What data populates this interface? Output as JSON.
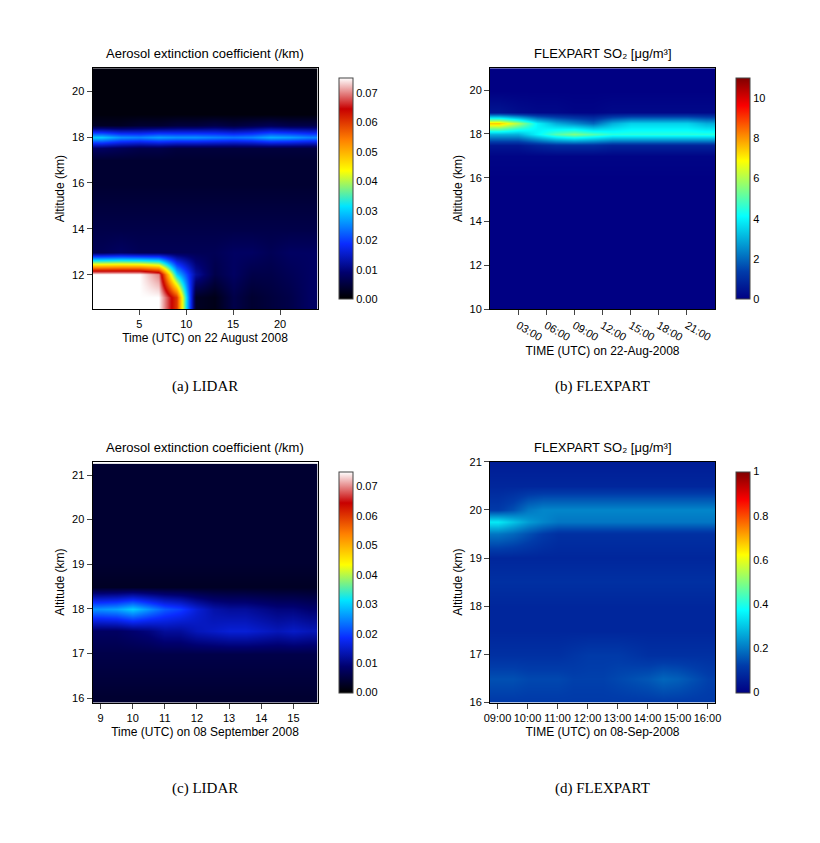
{
  "chart_data": [
    {
      "type": "heatmap",
      "title": "Aerosol extinction coefficient (/km)",
      "caption": "(a) LIDAR",
      "x_label": "Time (UTC) on 22 August 2008",
      "y_label": "Altitude (km)",
      "x": [
        1,
        3,
        5,
        7,
        9,
        11,
        13,
        15,
        17,
        19,
        21,
        23
      ],
      "y": [
        11,
        12,
        13,
        14,
        15,
        16,
        17,
        17.5,
        18,
        18.5,
        19,
        20,
        21
      ],
      "cells": [
        [
          0.075,
          0.075,
          0.075,
          0.075,
          0.06,
          0.003,
          0.002,
          0.006,
          0.004,
          0.005,
          0.006,
          0.008
        ],
        [
          0.075,
          0.075,
          0.075,
          0.07,
          0.03,
          0.012,
          0.006,
          0.008,
          0.006,
          0.006,
          0.007,
          0.008
        ],
        [
          0.007,
          0.008,
          0.007,
          0.007,
          0.007,
          0.007,
          0.007,
          0.008,
          0.008,
          0.007,
          0.008,
          0.008
        ],
        [
          0.006,
          0.006,
          0.006,
          0.006,
          0.006,
          0.006,
          0.006,
          0.006,
          0.006,
          0.006,
          0.006,
          0.006
        ],
        [
          0.005,
          0.005,
          0.005,
          0.005,
          0.005,
          0.005,
          0.005,
          0.005,
          0.005,
          0.005,
          0.005,
          0.005
        ],
        [
          0.004,
          0.004,
          0.004,
          0.004,
          0.004,
          0.004,
          0.004,
          0.004,
          0.004,
          0.004,
          0.004,
          0.004
        ],
        [
          0.004,
          0.004,
          0.004,
          0.004,
          0.004,
          0.004,
          0.004,
          0.004,
          0.004,
          0.004,
          0.004,
          0.004
        ],
        [
          0.008,
          0.007,
          0.006,
          0.006,
          0.005,
          0.005,
          0.005,
          0.005,
          0.005,
          0.005,
          0.005,
          0.005
        ],
        [
          0.03,
          0.026,
          0.025,
          0.027,
          0.026,
          0.026,
          0.025,
          0.024,
          0.025,
          0.028,
          0.027,
          0.025
        ],
        [
          0.003,
          0.003,
          0.004,
          0.004,
          0.005,
          0.005,
          0.006,
          0.005,
          0.006,
          0.007,
          0.006,
          0.006
        ],
        [
          0.001,
          0.001,
          0.001,
          0.001,
          0.001,
          0.001,
          0.001,
          0.001,
          0.001,
          0.001,
          0.001,
          0.001
        ],
        [
          0.001,
          0.001,
          0.001,
          0.001,
          0.001,
          0.001,
          0.001,
          0.001,
          0.001,
          0.001,
          0.001,
          0.001
        ],
        [
          0.001,
          0.001,
          0.001,
          0.001,
          0.001,
          0.001,
          0.001,
          0.001,
          0.001,
          0.001,
          0.001,
          0.001
        ]
      ],
      "xlim": [
        0,
        24
      ],
      "ylim": [
        10.5,
        21
      ],
      "xticks": [
        5,
        10,
        15,
        20
      ],
      "yticks": [
        12,
        14,
        16,
        18,
        20
      ],
      "colorbar_range": [
        0,
        0.075
      ],
      "colorbar_ticks": [
        {
          "value": 0,
          "label": "0.00"
        },
        {
          "value": 0.01,
          "label": "0.01"
        },
        {
          "value": 0.02,
          "label": "0.02"
        },
        {
          "value": 0.03,
          "label": "0.03"
        },
        {
          "value": 0.04,
          "label": "0.04"
        },
        {
          "value": 0.05,
          "label": "0.05"
        },
        {
          "value": 0.06,
          "label": "0.06"
        },
        {
          "value": 0.07,
          "label": "0.07"
        }
      ]
    },
    {
      "type": "heatmap",
      "title": "FLEXPART SO₂ [μg/m³]",
      "caption": "(b) FLEXPART",
      "x_label": "TIME (UTC) on 22-Aug-2008",
      "y_label": "Altitude (km)",
      "x": [
        1,
        3,
        5,
        7,
        9,
        11,
        13,
        15,
        17,
        19,
        21,
        23
      ],
      "y": [
        10,
        12,
        14,
        16,
        17,
        17.5,
        18,
        18.5,
        19,
        20,
        21
      ],
      "cells": [
        [
          0,
          0,
          0,
          0,
          0,
          0,
          0,
          0,
          0,
          0,
          0,
          0
        ],
        [
          0,
          0,
          0,
          0,
          0,
          0,
          0,
          0,
          0,
          0,
          0,
          0
        ],
        [
          0,
          0,
          0,
          0,
          0,
          0,
          0,
          0,
          0,
          0,
          0,
          0
        ],
        [
          0,
          0,
          0,
          0,
          0,
          0,
          0,
          0,
          0,
          0,
          0,
          0
        ],
        [
          0.1,
          0.1,
          0.1,
          0.1,
          0.1,
          0.1,
          0.1,
          0.1,
          0.1,
          0.1,
          0.1,
          0.1
        ],
        [
          0.5,
          0.5,
          0.8,
          1,
          1,
          1,
          0.8,
          0.8,
          0.8,
          0.8,
          0.8,
          0.8
        ],
        [
          3,
          3,
          4,
          5,
          5.5,
          5,
          4.5,
          4.5,
          4.5,
          4.5,
          4.5,
          4.5
        ],
        [
          7.5,
          6,
          4,
          3,
          2.5,
          2,
          3,
          3.5,
          3.5,
          3.5,
          3.5,
          3
        ],
        [
          0.5,
          0.3,
          0.2,
          0.2,
          0.1,
          0.1,
          0.2,
          0.2,
          0.2,
          0.2,
          0.2,
          0.2
        ],
        [
          0,
          0,
          0,
          0,
          0,
          0,
          0,
          0,
          0,
          0,
          0,
          0
        ],
        [
          0,
          0,
          0,
          0,
          0,
          0,
          0,
          0,
          0,
          0,
          0,
          0
        ]
      ],
      "xlim": [
        0,
        24
      ],
      "ylim": [
        10,
        21
      ],
      "xticks": [
        {
          "value": 3,
          "label": "03:00"
        },
        {
          "value": 6,
          "label": "06:00"
        },
        {
          "value": 9,
          "label": "09:00"
        },
        {
          "value": 12,
          "label": "12:00"
        },
        {
          "value": 15,
          "label": "15:00"
        },
        {
          "value": 18,
          "label": "18:00"
        },
        {
          "value": 21,
          "label": "21:00"
        }
      ],
      "yticks": [
        10,
        12,
        14,
        16,
        18,
        20
      ],
      "colorbar_range": [
        0,
        11
      ],
      "colorbar_ticks": [
        0,
        2,
        4,
        6,
        8,
        10
      ]
    },
    {
      "type": "heatmap",
      "title": "Aerosol extinction coefficient (/km)",
      "caption": "(c) LIDAR",
      "x_label": "Time (UTC) on 08 September 2008",
      "y_label": "Altitude (km)",
      "x": [
        9,
        9.5,
        10,
        10.5,
        11,
        11.5,
        12,
        12.5,
        13,
        13.5,
        14,
        14.5,
        15,
        15.5
      ],
      "y": [
        16,
        16.5,
        17,
        17.5,
        18,
        18.5,
        19,
        19.5,
        20,
        20.5,
        21
      ],
      "cells": [
        [
          0.004,
          0.004,
          0.004,
          0.004,
          0.004,
          0.004,
          0.004,
          0.004,
          0.004,
          0.004,
          0.004,
          0.004,
          0.004,
          0.004
        ],
        [
          0.005,
          0.005,
          0.005,
          0.005,
          0.005,
          0.005,
          0.005,
          0.005,
          0.005,
          0.005,
          0.005,
          0.005,
          0.005,
          0.005
        ],
        [
          0.006,
          0.006,
          0.006,
          0.006,
          0.006,
          0.006,
          0.006,
          0.006,
          0.006,
          0.006,
          0.006,
          0.006,
          0.006,
          0.006
        ],
        [
          0.008,
          0.008,
          0.009,
          0.01,
          0.012,
          0.012,
          0.014,
          0.015,
          0.016,
          0.016,
          0.015,
          0.014,
          0.015,
          0.014
        ],
        [
          0.026,
          0.027,
          0.03,
          0.026,
          0.022,
          0.02,
          0.016,
          0.013,
          0.012,
          0.012,
          0.011,
          0.01,
          0.01,
          0.009
        ],
        [
          0.003,
          0.003,
          0.003,
          0.003,
          0.003,
          0.003,
          0.003,
          0.003,
          0.003,
          0.003,
          0.003,
          0.003,
          0.003,
          0.003
        ],
        [
          0.004,
          0.004,
          0.004,
          0.004,
          0.004,
          0.004,
          0.004,
          0.004,
          0.004,
          0.004,
          0.004,
          0.004,
          0.004,
          0.004
        ],
        [
          0.004,
          0.004,
          0.004,
          0.004,
          0.004,
          0.004,
          0.004,
          0.004,
          0.004,
          0.004,
          0.004,
          0.004,
          0.004,
          0.004
        ],
        [
          0.004,
          0.004,
          0.004,
          0.004,
          0.004,
          0.004,
          0.004,
          0.004,
          0.004,
          0.004,
          0.004,
          0.004,
          0.004,
          0.004
        ],
        [
          0.004,
          0.004,
          0.004,
          0.004,
          0.004,
          0.004,
          0.004,
          0.004,
          0.004,
          0.004,
          0.004,
          0.004,
          0.004,
          0.004
        ],
        [
          0.004,
          0.004,
          0.004,
          0.004,
          0.004,
          0.004,
          0.004,
          0.004,
          0.004,
          0.004,
          0.004,
          0.004,
          0.004,
          0.004
        ]
      ],
      "xlim": [
        8.75,
        15.75
      ],
      "ylim": [
        15.9,
        21.3
      ],
      "xticks": [
        9,
        10,
        11,
        12,
        13,
        14,
        15
      ],
      "yticks": [
        16,
        17,
        18,
        19,
        20,
        21
      ],
      "colorbar_range": [
        0,
        0.075
      ],
      "colorbar_ticks": [
        {
          "value": 0,
          "label": "0.00"
        },
        {
          "value": 0.01,
          "label": "0.01"
        },
        {
          "value": 0.02,
          "label": "0.02"
        },
        {
          "value": 0.03,
          "label": "0.03"
        },
        {
          "value": 0.04,
          "label": "0.04"
        },
        {
          "value": 0.05,
          "label": "0.05"
        },
        {
          "value": 0.06,
          "label": "0.06"
        },
        {
          "value": 0.07,
          "label": "0.07"
        }
      ]
    },
    {
      "type": "heatmap",
      "title": "FLEXPART SO₂ [μg/m³]",
      "caption": "(d) FLEXPART",
      "x_label": "TIME (UTC) on 08-Sep-2008",
      "y_label": "Altitude (km)",
      "x": [
        9,
        9.5,
        10,
        10.5,
        11,
        11.5,
        12,
        12.5,
        13,
        13.5,
        14,
        14.5,
        15,
        15.5,
        16
      ],
      "y": [
        16,
        16.5,
        17,
        17.5,
        18,
        18.5,
        19,
        19.5,
        19.75,
        20,
        20.5,
        21
      ],
      "cells": [
        [
          0.12,
          0.12,
          0.12,
          0.12,
          0.12,
          0.12,
          0.12,
          0.12,
          0.12,
          0.12,
          0.12,
          0.12,
          0.12,
          0.12,
          0.12
        ],
        [
          0.15,
          0.15,
          0.14,
          0.14,
          0.14,
          0.13,
          0.13,
          0.13,
          0.14,
          0.15,
          0.16,
          0.18,
          0.17,
          0.15,
          0.13
        ],
        [
          0.1,
          0.1,
          0.1,
          0.1,
          0.1,
          0.11,
          0.12,
          0.12,
          0.12,
          0.11,
          0.1,
          0.1,
          0.1,
          0.1,
          0.1
        ],
        [
          0.08,
          0.08,
          0.08,
          0.08,
          0.08,
          0.08,
          0.08,
          0.08,
          0.08,
          0.08,
          0.08,
          0.08,
          0.08,
          0.08,
          0.08
        ],
        [
          0.08,
          0.08,
          0.08,
          0.08,
          0.08,
          0.08,
          0.08,
          0.08,
          0.08,
          0.08,
          0.08,
          0.08,
          0.08,
          0.08,
          0.08
        ],
        [
          0.1,
          0.1,
          0.1,
          0.1,
          0.1,
          0.1,
          0.1,
          0.1,
          0.1,
          0.1,
          0.1,
          0.1,
          0.1,
          0.1,
          0.1
        ],
        [
          0.08,
          0.08,
          0.08,
          0.08,
          0.08,
          0.08,
          0.08,
          0.08,
          0.08,
          0.08,
          0.08,
          0.08,
          0.08,
          0.08,
          0.08
        ],
        [
          0.2,
          0.18,
          0.15,
          0.12,
          0.1,
          0.1,
          0.1,
          0.1,
          0.1,
          0.1,
          0.1,
          0.1,
          0.1,
          0.1,
          0.1
        ],
        [
          0.35,
          0.3,
          0.25,
          0.22,
          0.2,
          0.2,
          0.2,
          0.2,
          0.2,
          0.2,
          0.2,
          0.2,
          0.2,
          0.2,
          0.2
        ],
        [
          0.12,
          0.15,
          0.2,
          0.22,
          0.22,
          0.22,
          0.22,
          0.22,
          0.22,
          0.22,
          0.22,
          0.22,
          0.22,
          0.22,
          0.22
        ],
        [
          0.08,
          0.08,
          0.08,
          0.08,
          0.08,
          0.08,
          0.08,
          0.08,
          0.08,
          0.08,
          0.08,
          0.08,
          0.08,
          0.08,
          0.08
        ],
        [
          0.06,
          0.06,
          0.06,
          0.06,
          0.06,
          0.06,
          0.06,
          0.06,
          0.06,
          0.06,
          0.06,
          0.06,
          0.06,
          0.06,
          0.06
        ]
      ],
      "xlim": [
        8.75,
        16.25
      ],
      "ylim": [
        16,
        21
      ],
      "xticks": [
        {
          "value": 9,
          "label": "09:00"
        },
        {
          "value": 10,
          "label": "10:00"
        },
        {
          "value": 11,
          "label": "11:00"
        },
        {
          "value": 12,
          "label": "12:00"
        },
        {
          "value": 13,
          "label": "13:00"
        },
        {
          "value": 14,
          "label": "14:00"
        },
        {
          "value": 15,
          "label": "15:00"
        },
        {
          "value": 16,
          "label": "16:00"
        }
      ],
      "yticks": [
        16,
        17,
        18,
        19,
        20,
        21
      ],
      "colorbar_range": [
        0,
        1
      ],
      "colorbar_ticks": [
        0,
        0.2,
        0.4,
        0.6,
        0.8,
        1
      ]
    }
  ]
}
